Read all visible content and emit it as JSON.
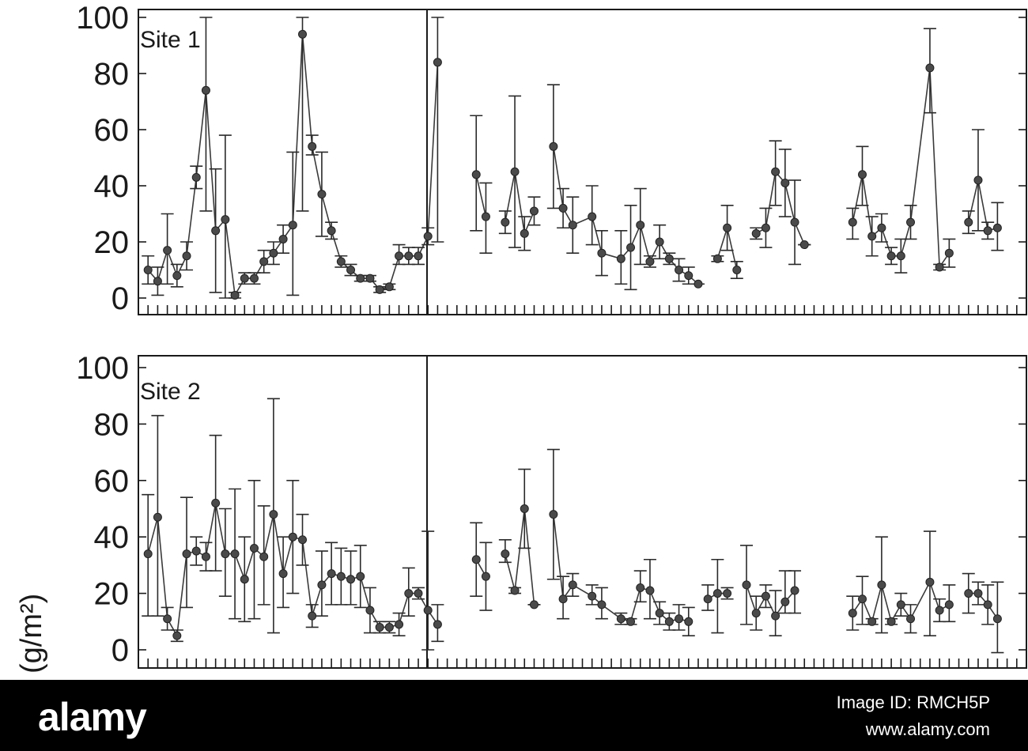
{
  "chart_data": [
    {
      "type": "line",
      "panel_label": "Site 1",
      "ylim": [
        0,
        100
      ],
      "yticks": [
        "100",
        "80",
        "60",
        "40",
        "20",
        "0"
      ],
      "y_values_ticks": [
        100,
        80,
        60,
        40,
        20,
        0
      ],
      "error_bars": true,
      "segments": [
        {
          "points": [
            {
              "x": 1,
              "y": 10,
              "lo": 5,
              "hi": 15
            },
            {
              "x": 2,
              "y": 6,
              "lo": 1,
              "hi": 11
            },
            {
              "x": 3,
              "y": 17,
              "lo": 5,
              "hi": 30
            },
            {
              "x": 4,
              "y": 8,
              "lo": 4,
              "hi": 12
            },
            {
              "x": 5,
              "y": 15,
              "lo": 10,
              "hi": 20
            },
            {
              "x": 6,
              "y": 43,
              "lo": 39,
              "hi": 47
            },
            {
              "x": 7,
              "y": 74,
              "lo": 31,
              "hi": 100
            },
            {
              "x": 8,
              "y": 24,
              "lo": 2,
              "hi": 46
            },
            {
              "x": 9,
              "y": 28,
              "lo": 0,
              "hi": 58
            },
            {
              "x": 10,
              "y": 1,
              "lo": 0,
              "hi": 2
            },
            {
              "x": 11,
              "y": 7,
              "lo": 5,
              "hi": 9
            },
            {
              "x": 12,
              "y": 7,
              "lo": 5,
              "hi": 9
            },
            {
              "x": 13,
              "y": 13,
              "lo": 9,
              "hi": 17
            },
            {
              "x": 14,
              "y": 16,
              "lo": 12,
              "hi": 20
            },
            {
              "x": 15,
              "y": 21,
              "lo": 16,
              "hi": 26
            },
            {
              "x": 16,
              "y": 26,
              "lo": 1,
              "hi": 52
            },
            {
              "x": 17,
              "y": 94,
              "lo": 31,
              "hi": 100
            },
            {
              "x": 18,
              "y": 54,
              "lo": 51,
              "hi": 58
            },
            {
              "x": 19,
              "y": 37,
              "lo": 22,
              "hi": 52
            },
            {
              "x": 20,
              "y": 24,
              "lo": 21,
              "hi": 27
            },
            {
              "x": 21,
              "y": 13,
              "lo": 11,
              "hi": 15
            },
            {
              "x": 22,
              "y": 10,
              "lo": 8,
              "hi": 12
            },
            {
              "x": 23,
              "y": 7,
              "lo": 6,
              "hi": 8
            },
            {
              "x": 24,
              "y": 7,
              "lo": 6,
              "hi": 8
            },
            {
              "x": 25,
              "y": 3,
              "lo": 2,
              "hi": 4
            },
            {
              "x": 26,
              "y": 4,
              "lo": 3,
              "hi": 5
            },
            {
              "x": 27,
              "y": 15,
              "lo": 12,
              "hi": 19
            },
            {
              "x": 28,
              "y": 15,
              "lo": 12,
              "hi": 18
            },
            {
              "x": 29,
              "y": 15,
              "lo": 12,
              "hi": 18
            },
            {
              "x": 30,
              "y": 22,
              "lo": 19,
              "hi": 25
            },
            {
              "x": 31,
              "y": 84,
              "lo": 20,
              "hi": 100
            }
          ]
        },
        {
          "points": [
            {
              "x": 35,
              "y": 44,
              "lo": 24,
              "hi": 65
            },
            {
              "x": 36,
              "y": 29,
              "lo": 16,
              "hi": 41
            }
          ]
        },
        {
          "points": [
            {
              "x": 38,
              "y": 27,
              "lo": 23,
              "hi": 31
            },
            {
              "x": 39,
              "y": 45,
              "lo": 18,
              "hi": 72
            },
            {
              "x": 40,
              "y": 23,
              "lo": 17,
              "hi": 29
            },
            {
              "x": 41,
              "y": 31,
              "lo": 26,
              "hi": 36
            }
          ]
        },
        {
          "points": [
            {
              "x": 43,
              "y": 54,
              "lo": 32,
              "hi": 76
            },
            {
              "x": 44,
              "y": 32,
              "lo": 25,
              "hi": 39
            },
            {
              "x": 45,
              "y": 26,
              "lo": 16,
              "hi": 36
            },
            {
              "x": 47,
              "y": 29,
              "lo": 19,
              "hi": 40
            },
            {
              "x": 48,
              "y": 16,
              "lo": 8,
              "hi": 24
            },
            {
              "x": 50,
              "y": 14,
              "lo": 5,
              "hi": 24
            },
            {
              "x": 51,
              "y": 18,
              "lo": 3,
              "hi": 33
            },
            {
              "x": 52,
              "y": 26,
              "lo": 12,
              "hi": 39
            },
            {
              "x": 53,
              "y": 13,
              "lo": 11,
              "hi": 15
            },
            {
              "x": 54,
              "y": 20,
              "lo": 14,
              "hi": 26
            },
            {
              "x": 55,
              "y": 14,
              "lo": 12,
              "hi": 16
            },
            {
              "x": 56,
              "y": 10,
              "lo": 6,
              "hi": 14
            },
            {
              "x": 57,
              "y": 8,
              "lo": 5,
              "hi": 11
            },
            {
              "x": 58,
              "y": 5,
              "lo": 5,
              "hi": 5
            }
          ]
        },
        {
          "points": [
            {
              "x": 60,
              "y": 14,
              "lo": 13,
              "hi": 15
            },
            {
              "x": 61,
              "y": 25,
              "lo": 17,
              "hi": 33
            },
            {
              "x": 62,
              "y": 10,
              "lo": 7,
              "hi": 13
            }
          ]
        },
        {
          "points": [
            {
              "x": 64,
              "y": 23,
              "lo": 21,
              "hi": 25
            },
            {
              "x": 65,
              "y": 25,
              "lo": 18,
              "hi": 32
            },
            {
              "x": 66,
              "y": 45,
              "lo": 33,
              "hi": 56
            },
            {
              "x": 67,
              "y": 41,
              "lo": 29,
              "hi": 53
            },
            {
              "x": 68,
              "y": 27,
              "lo": 12,
              "hi": 42
            },
            {
              "x": 69,
              "y": 19,
              "lo": 19,
              "hi": 19
            }
          ]
        },
        {
          "points": [
            {
              "x": 74,
              "y": 27,
              "lo": 21,
              "hi": 32
            },
            {
              "x": 75,
              "y": 44,
              "lo": 33,
              "hi": 54
            },
            {
              "x": 76,
              "y": 22,
              "lo": 15,
              "hi": 29
            },
            {
              "x": 77,
              "y": 25,
              "lo": 20,
              "hi": 30
            },
            {
              "x": 78,
              "y": 15,
              "lo": 12,
              "hi": 18
            },
            {
              "x": 79,
              "y": 15,
              "lo": 9,
              "hi": 21
            },
            {
              "x": 80,
              "y": 27,
              "lo": 21,
              "hi": 33
            },
            {
              "x": 82,
              "y": 82,
              "lo": 66,
              "hi": 96
            },
            {
              "x": 83,
              "y": 11,
              "lo": 10,
              "hi": 12
            },
            {
              "x": 84,
              "y": 16,
              "lo": 11,
              "hi": 21
            }
          ]
        },
        {
          "points": [
            {
              "x": 86,
              "y": 27,
              "lo": 23,
              "hi": 31
            },
            {
              "x": 87,
              "y": 42,
              "lo": 24,
              "hi": 60
            },
            {
              "x": 88,
              "y": 24,
              "lo": 21,
              "hi": 27
            },
            {
              "x": 89,
              "y": 25,
              "lo": 17,
              "hi": 34
            }
          ]
        }
      ]
    },
    {
      "type": "line",
      "panel_label": "Site 2",
      "ylim": [
        0,
        100
      ],
      "yticks": [
        "100",
        "80",
        "60",
        "40",
        "20",
        "0"
      ],
      "y_values_ticks": [
        100,
        80,
        60,
        40,
        20,
        0
      ],
      "ylabel": "(g/m²)",
      "error_bars": true,
      "segments": [
        {
          "points": [
            {
              "x": 1,
              "y": 34,
              "lo": 12,
              "hi": 55
            },
            {
              "x": 2,
              "y": 47,
              "lo": 12,
              "hi": 83
            },
            {
              "x": 3,
              "y": 11,
              "lo": 7,
              "hi": 15
            },
            {
              "x": 4,
              "y": 5,
              "lo": 3,
              "hi": 7
            },
            {
              "x": 5,
              "y": 34,
              "lo": 15,
              "hi": 54
            },
            {
              "x": 6,
              "y": 35,
              "lo": 30,
              "hi": 40
            },
            {
              "x": 7,
              "y": 33,
              "lo": 28,
              "hi": 38
            },
            {
              "x": 8,
              "y": 52,
              "lo": 28,
              "hi": 76
            },
            {
              "x": 9,
              "y": 34,
              "lo": 19,
              "hi": 50
            },
            {
              "x": 10,
              "y": 34,
              "lo": 11,
              "hi": 57
            },
            {
              "x": 11,
              "y": 25,
              "lo": 10,
              "hi": 40
            },
            {
              "x": 12,
              "y": 36,
              "lo": 11,
              "hi": 60
            },
            {
              "x": 13,
              "y": 33,
              "lo": 16,
              "hi": 51
            },
            {
              "x": 14,
              "y": 48,
              "lo": 6,
              "hi": 89
            },
            {
              "x": 15,
              "y": 27,
              "lo": 15,
              "hi": 40
            },
            {
              "x": 16,
              "y": 40,
              "lo": 20,
              "hi": 60
            },
            {
              "x": 17,
              "y": 39,
              "lo": 30,
              "hi": 48
            },
            {
              "x": 18,
              "y": 12,
              "lo": 8,
              "hi": 16
            },
            {
              "x": 19,
              "y": 23,
              "lo": 12,
              "hi": 35
            },
            {
              "x": 20,
              "y": 27,
              "lo": 16,
              "hi": 38
            },
            {
              "x": 21,
              "y": 26,
              "lo": 16,
              "hi": 36
            },
            {
              "x": 22,
              "y": 25,
              "lo": 16,
              "hi": 35
            },
            {
              "x": 23,
              "y": 26,
              "lo": 15,
              "hi": 37
            },
            {
              "x": 24,
              "y": 14,
              "lo": 6,
              "hi": 22
            },
            {
              "x": 25,
              "y": 8,
              "lo": 6,
              "hi": 10
            },
            {
              "x": 26,
              "y": 8,
              "lo": 6,
              "hi": 10
            },
            {
              "x": 27,
              "y": 9,
              "lo": 5,
              "hi": 13
            },
            {
              "x": 28,
              "y": 20,
              "lo": 12,
              "hi": 29
            },
            {
              "x": 29,
              "y": 20,
              "lo": 18,
              "hi": 22
            },
            {
              "x": 30,
              "y": 14,
              "lo": 0,
              "hi": 42
            },
            {
              "x": 31,
              "y": 9,
              "lo": 3,
              "hi": 16
            }
          ]
        },
        {
          "points": [
            {
              "x": 35,
              "y": 32,
              "lo": 19,
              "hi": 45
            },
            {
              "x": 36,
              "y": 26,
              "lo": 14,
              "hi": 38
            }
          ]
        },
        {
          "points": [
            {
              "x": 38,
              "y": 34,
              "lo": 31,
              "hi": 39
            },
            {
              "x": 39,
              "y": 21,
              "lo": 20,
              "hi": 22
            },
            {
              "x": 40,
              "y": 50,
              "lo": 36,
              "hi": 64
            },
            {
              "x": 41,
              "y": 16,
              "lo": 16,
              "hi": 16
            }
          ]
        },
        {
          "points": [
            {
              "x": 43,
              "y": 48,
              "lo": 25,
              "hi": 71
            },
            {
              "x": 44,
              "y": 18,
              "lo": 11,
              "hi": 26
            },
            {
              "x": 45,
              "y": 23,
              "lo": 19,
              "hi": 27
            },
            {
              "x": 47,
              "y": 19,
              "lo": 16,
              "hi": 23
            },
            {
              "x": 48,
              "y": 16,
              "lo": 11,
              "hi": 22
            },
            {
              "x": 50,
              "y": 11,
              "lo": 9,
              "hi": 13
            },
            {
              "x": 51,
              "y": 10,
              "lo": 9,
              "hi": 11
            },
            {
              "x": 52,
              "y": 22,
              "lo": 17,
              "hi": 28
            },
            {
              "x": 53,
              "y": 21,
              "lo": 11,
              "hi": 32
            },
            {
              "x": 54,
              "y": 13,
              "lo": 9,
              "hi": 17
            },
            {
              "x": 55,
              "y": 10,
              "lo": 7,
              "hi": 13
            },
            {
              "x": 56,
              "y": 11,
              "lo": 7,
              "hi": 16
            },
            {
              "x": 57,
              "y": 10,
              "lo": 5,
              "hi": 15
            }
          ]
        },
        {
          "points": [
            {
              "x": 59,
              "y": 18,
              "lo": 14,
              "hi": 23
            },
            {
              "x": 60,
              "y": 20,
              "lo": 6,
              "hi": 32
            },
            {
              "x": 61,
              "y": 20,
              "lo": 18,
              "hi": 22
            }
          ]
        },
        {
          "points": [
            {
              "x": 63,
              "y": 23,
              "lo": 9,
              "hi": 37
            },
            {
              "x": 64,
              "y": 13,
              "lo": 7,
              "hi": 19
            },
            {
              "x": 65,
              "y": 19,
              "lo": 15,
              "hi": 23
            },
            {
              "x": 66,
              "y": 12,
              "lo": 5,
              "hi": 21
            },
            {
              "x": 67,
              "y": 17,
              "lo": 13,
              "hi": 28
            },
            {
              "x": 68,
              "y": 21,
              "lo": 13,
              "hi": 28
            }
          ]
        },
        {
          "points": [
            {
              "x": 74,
              "y": 13,
              "lo": 7,
              "hi": 19
            },
            {
              "x": 75,
              "y": 18,
              "lo": 9,
              "hi": 26
            },
            {
              "x": 76,
              "y": 10,
              "lo": 9,
              "hi": 11
            },
            {
              "x": 77,
              "y": 23,
              "lo": 6,
              "hi": 40
            },
            {
              "x": 78,
              "y": 10,
              "lo": 9,
              "hi": 11
            },
            {
              "x": 79,
              "y": 16,
              "lo": 12,
              "hi": 20
            },
            {
              "x": 80,
              "y": 11,
              "lo": 6,
              "hi": 16
            },
            {
              "x": 82,
              "y": 24,
              "lo": 5,
              "hi": 42
            },
            {
              "x": 83,
              "y": 14,
              "lo": 10,
              "hi": 18
            },
            {
              "x": 84,
              "y": 16,
              "lo": 10,
              "hi": 23
            }
          ]
        },
        {
          "points": [
            {
              "x": 86,
              "y": 20,
              "lo": 13,
              "hi": 27
            },
            {
              "x": 87,
              "y": 20,
              "lo": 16,
              "hi": 24
            },
            {
              "x": 88,
              "y": 16,
              "lo": 9,
              "hi": 23
            },
            {
              "x": 89,
              "y": 11,
              "lo": -1,
              "hi": 24
            }
          ]
        }
      ]
    }
  ],
  "footer": {
    "brand": "alamy",
    "image_id": "Image ID: RMCH5P",
    "url": "www.alamy.com"
  },
  "colors": {
    "line": "#3a3a3a",
    "marker": "#4a4a4a",
    "footer_bg": "#000000",
    "footer_text": "#ffffff"
  }
}
